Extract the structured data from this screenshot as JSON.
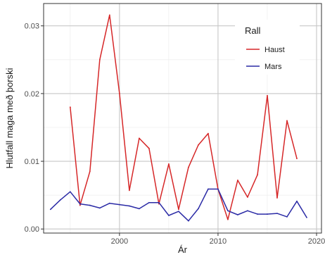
{
  "chart_data": {
    "type": "line",
    "xlabel": "Ár",
    "ylabel": "Hlutfall maga með þorski",
    "xlim": [
      1992.3,
      2020.5
    ],
    "ylim": [
      -0.0006,
      0.0333
    ],
    "x_ticks": [
      2000,
      2010,
      2020
    ],
    "x_tick_labels": [
      "2000",
      "2010",
      "2020"
    ],
    "y_ticks": [
      0,
      0.01,
      0.02,
      0.03
    ],
    "y_tick_labels": [
      "0.00",
      "0.01",
      "0.02",
      "0.03"
    ],
    "grid": true,
    "legend": {
      "title": "Rall",
      "position": "top-right"
    },
    "series": [
      {
        "name": "Haust",
        "color": "#d62728",
        "x": [
          1995,
          1996,
          1997,
          1998,
          1999,
          2000,
          2001,
          2002,
          2003,
          2004,
          2005,
          2006,
          2007,
          2008,
          2009,
          2010,
          2011,
          2012,
          2013,
          2014,
          2015,
          2016,
          2017,
          2018
        ],
        "y": [
          0.018,
          0.0035,
          0.0085,
          0.025,
          0.0316,
          0.02,
          0.0057,
          0.0134,
          0.0119,
          0.0037,
          0.0096,
          0.0029,
          0.0091,
          0.0124,
          0.0141,
          0.0059,
          0.0014,
          0.0072,
          0.0047,
          0.008,
          0.0197,
          0.0046,
          0.016,
          0.0104
        ]
      },
      {
        "name": "Mars",
        "color": "#2b2ba6",
        "x": [
          1993,
          1994,
          1995,
          1996,
          1997,
          1998,
          1999,
          2000,
          2001,
          2002,
          2003,
          2004,
          2005,
          2006,
          2007,
          2008,
          2009,
          2010,
          2011,
          2012,
          2013,
          2014,
          2015,
          2016,
          2017,
          2018,
          2019
        ],
        "y": [
          0.0029,
          0.0043,
          0.0055,
          0.0037,
          0.0035,
          0.0031,
          0.0038,
          0.0036,
          0.0034,
          0.003,
          0.0039,
          0.0039,
          0.002,
          0.0026,
          0.0012,
          0.003,
          0.0059,
          0.0059,
          0.0027,
          0.0021,
          0.0027,
          0.0022,
          0.0022,
          0.0023,
          0.0018,
          0.0041,
          0.0017
        ]
      }
    ]
  }
}
